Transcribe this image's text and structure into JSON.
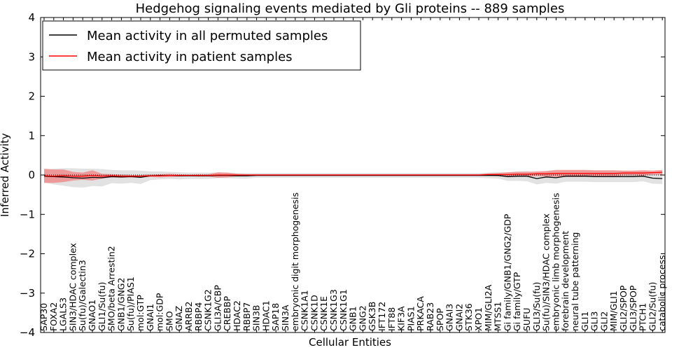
{
  "chart_data": {
    "type": "line",
    "title": "Hedgehog signaling events mediated by Gli proteins -- 889 samples",
    "xlabel": "Cellular Entities",
    "ylabel": "Inferred Activity",
    "ylim": [
      -4,
      4
    ],
    "yticks": [
      4,
      3,
      2,
      1,
      0,
      -1,
      -2,
      -3,
      -4
    ],
    "ytick_labels": [
      "4",
      "3",
      "2",
      "1",
      "0",
      "−1",
      "−2",
      "−3",
      "−4"
    ],
    "grid": false,
    "legend_position": "top-left",
    "categories": [
      "SAP30",
      "FOXA2",
      "LGALS3",
      "SIN3/HDAC complex",
      "Su(fu)/Galectin3",
      "GNAO1",
      "GLI1/Su(fu)",
      "SMO/beta Arrestin2",
      "GNB1/GNG2",
      "Su(fu)/PIAS1",
      "mol:GTP",
      "GNAI1",
      "mol:GDP",
      "SMO",
      "GNAZ",
      "ARRB2",
      "RBBP4",
      "CSNK1G2",
      "GLI3A/CBP",
      "CREBBP",
      "HDAC2",
      "RBBP7",
      "SIN3B",
      "HDAC1",
      "SAP18",
      "SIN3A",
      "embryonic digit morphogenesis",
      "CSNK1A1",
      "CSNK1D",
      "CSNK1E",
      "CSNK1G3",
      "CSNK1G1",
      "GNB1",
      "GNG2",
      "GSK3B",
      "IFT172",
      "IFT88",
      "KIF3A",
      "PIAS1",
      "PRKACA",
      "RAB23",
      "SPOP",
      "GNAI3",
      "GNAI2",
      "STK36",
      "XPO1",
      "MIM/GLI2A",
      "MTSS1",
      "Gi family/GNB1/GNG2/GDP",
      "Gi family/GTP",
      "SUFU",
      "GLI3/Su(fu)",
      "Su(fu)/SIN3/HDAC complex",
      "embryonic limb morphogenesis",
      "forebrain development",
      "neural tube patterning",
      "GLI1",
      "GLI3",
      "GLI2",
      "MIM/GLI1",
      "GLI2/SPOP",
      "GLI3/SPOP",
      "PTCH1",
      "GLI2/Su(fu)",
      "catabolic process"
    ],
    "series": [
      {
        "name": "Mean activity in all permuted samples",
        "color": "#000000",
        "values": [
          -0.03,
          -0.04,
          -0.05,
          -0.07,
          -0.08,
          -0.06,
          -0.07,
          -0.04,
          -0.05,
          -0.04,
          -0.06,
          -0.02,
          -0.01,
          -0.01,
          -0.02,
          -0.02,
          -0.02,
          -0.02,
          -0.01,
          -0.01,
          -0.02,
          -0.02,
          -0.01,
          -0.01,
          -0.01,
          -0.01,
          -0.01,
          -0.01,
          -0.01,
          -0.01,
          -0.01,
          -0.01,
          -0.01,
          -0.01,
          -0.01,
          -0.01,
          -0.01,
          -0.01,
          -0.01,
          -0.01,
          -0.01,
          -0.01,
          -0.01,
          -0.01,
          -0.01,
          -0.01,
          -0.01,
          -0.01,
          -0.04,
          -0.03,
          -0.03,
          -0.09,
          -0.05,
          -0.07,
          -0.03,
          -0.03,
          -0.03,
          -0.04,
          -0.04,
          -0.04,
          -0.04,
          -0.04,
          -0.03,
          -0.08,
          -0.09
        ],
        "band": [
          0.16,
          0.2,
          0.22,
          0.24,
          0.24,
          0.22,
          0.22,
          0.17,
          0.17,
          0.16,
          0.17,
          0.11,
          0.1,
          0.09,
          0.09,
          0.08,
          0.08,
          0.08,
          0.07,
          0.07,
          0.07,
          0.07,
          0.06,
          0.06,
          0.06,
          0.06,
          0.06,
          0.06,
          0.06,
          0.06,
          0.06,
          0.06,
          0.06,
          0.06,
          0.06,
          0.06,
          0.06,
          0.06,
          0.06,
          0.06,
          0.06,
          0.06,
          0.06,
          0.06,
          0.06,
          0.06,
          0.07,
          0.08,
          0.11,
          0.12,
          0.13,
          0.15,
          0.15,
          0.15,
          0.14,
          0.14,
          0.14,
          0.14,
          0.14,
          0.14,
          0.14,
          0.14,
          0.13,
          0.14,
          0.14
        ]
      },
      {
        "name": "Mean activity in patient samples",
        "color": "#ff0000",
        "values": [
          -0.02,
          -0.03,
          -0.02,
          -0.03,
          -0.03,
          -0.01,
          -0.03,
          -0.02,
          -0.03,
          -0.03,
          -0.03,
          -0.02,
          -0.02,
          -0.01,
          -0.01,
          -0.01,
          -0.01,
          -0.01,
          0.0,
          0.0,
          0.0,
          0.0,
          0.0,
          0.0,
          0.0,
          0.0,
          0.0,
          0.0,
          0.0,
          0.0,
          0.0,
          0.0,
          0.0,
          0.0,
          0.0,
          0.0,
          0.0,
          0.0,
          0.0,
          0.0,
          0.0,
          0.0,
          0.0,
          0.0,
          0.0,
          0.0,
          0.01,
          0.01,
          0.01,
          0.02,
          0.02,
          0.03,
          0.03,
          0.04,
          0.04,
          0.04,
          0.04,
          0.04,
          0.04,
          0.04,
          0.05,
          0.05,
          0.05,
          0.06,
          0.07
        ],
        "band": [
          0.18,
          0.17,
          0.16,
          0.11,
          0.09,
          0.13,
          0.06,
          0.04,
          0.04,
          0.03,
          0.03,
          0.03,
          0.04,
          0.04,
          0.03,
          0.02,
          0.03,
          0.03,
          0.07,
          0.06,
          0.03,
          0.02,
          0.02,
          0.02,
          0.02,
          0.02,
          0.02,
          0.02,
          0.02,
          0.02,
          0.02,
          0.02,
          0.02,
          0.02,
          0.02,
          0.02,
          0.02,
          0.02,
          0.02,
          0.02,
          0.02,
          0.02,
          0.02,
          0.02,
          0.02,
          0.02,
          0.03,
          0.04,
          0.06,
          0.06,
          0.06,
          0.06,
          0.07,
          0.09,
          0.09,
          0.09,
          0.09,
          0.08,
          0.08,
          0.08,
          0.06,
          0.06,
          0.07,
          0.05,
          0.06
        ]
      }
    ],
    "reference_line": {
      "y": 0,
      "style": "dotted"
    }
  },
  "colors": {
    "permuted_band": "#d3d3d3",
    "patient_band": "#f08080"
  }
}
